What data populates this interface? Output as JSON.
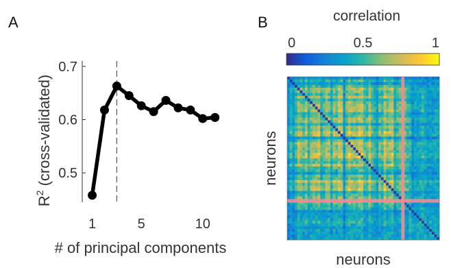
{
  "panels": {
    "a": "A",
    "b": "B"
  },
  "chart_data": [
    {
      "type": "line",
      "xlabel": "# of principal components",
      "ylabel": "R",
      "ylabel_superscript": "2",
      "ylabel_suffix": "(cross-validated)",
      "xlim": [
        0.3,
        11.8
      ],
      "ylim": [
        0.445,
        0.71
      ],
      "xticks": [
        1,
        5,
        10
      ],
      "yticks": [
        0.5,
        0.6,
        0.7
      ],
      "ytick_labels": [
        "0.5",
        "0.6",
        "0.7"
      ],
      "series": [
        {
          "x": [
            1,
            2,
            3,
            4,
            5,
            6,
            7,
            8,
            9,
            10,
            11
          ],
          "values": [
            0.458,
            0.618,
            0.663,
            0.645,
            0.626,
            0.615,
            0.636,
            0.622,
            0.618,
            0.602,
            0.604
          ],
          "color": "#000000"
        }
      ],
      "vline_x": 3,
      "grid": false
    },
    {
      "type": "heatmap",
      "title": "correlation",
      "xlabel": "neurons",
      "ylabel": "neurons",
      "colorbar_ticks": [
        0,
        0.5,
        1
      ],
      "colorbar_tick_labels": [
        "0",
        "0.5",
        "1"
      ],
      "colormap": "parula",
      "highlight_color": "#f08c96"
    }
  ]
}
